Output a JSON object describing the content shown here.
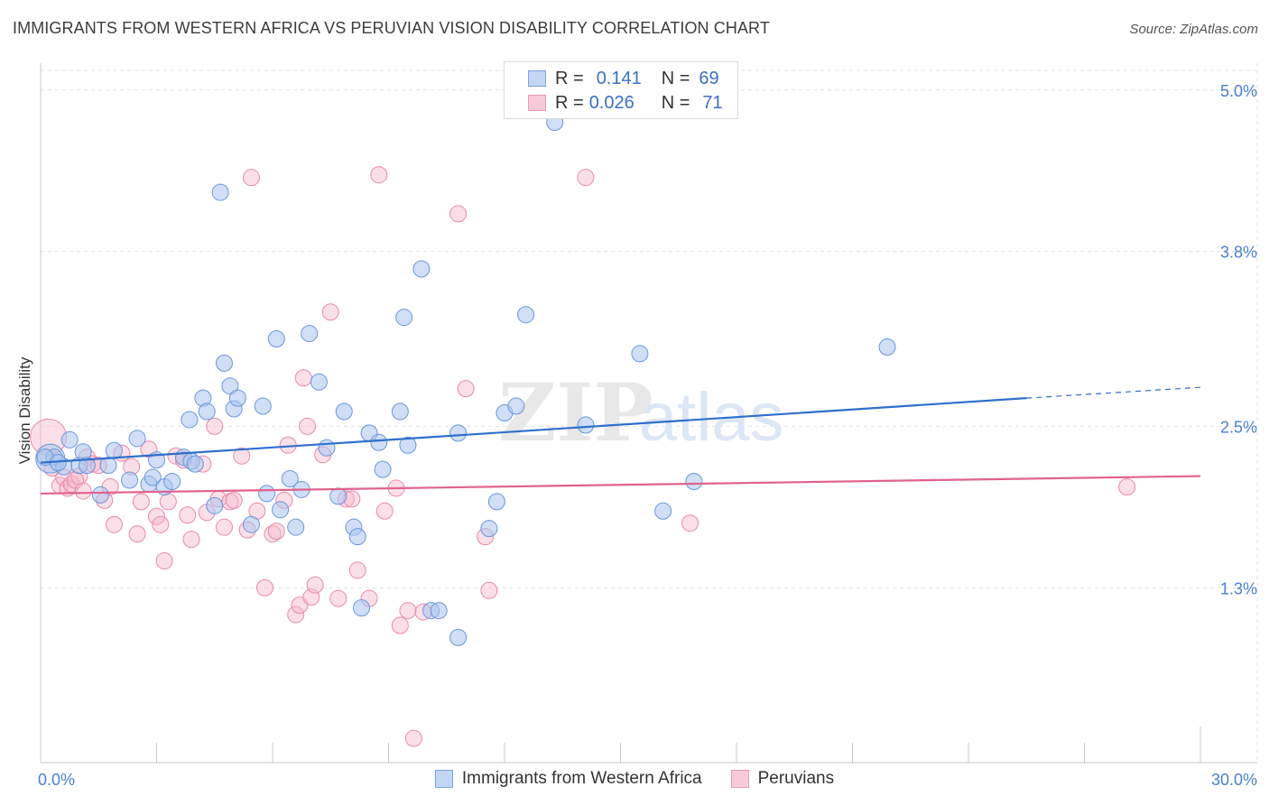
{
  "title": "IMMIGRANTS FROM WESTERN AFRICA VS PERUVIAN VISION DISABILITY CORRELATION CHART",
  "source": "Source: ZipAtlas.com",
  "watermark": {
    "zip": "ZIP",
    "atlas": "atlas"
  },
  "colors": {
    "blue_fill": "#a9c4ee",
    "blue_stroke": "#6a96da",
    "blue_line": "#2f6fcc",
    "pink_fill": "#f6b9cc",
    "pink_stroke": "#e88aa8",
    "pink_line": "#e0628c",
    "tick_text": "#4a7fd0",
    "grid": "#e3e3e3"
  },
  "legend": {
    "rows": [
      {
        "r_label": "R =",
        "r_value": "0.141",
        "n_label": "N =",
        "n_value": "69"
      },
      {
        "r_label": "R =",
        "r_value": "0.026",
        "n_label": "N =",
        "n_value": "71"
      }
    ]
  },
  "bottom_legend": [
    "Immigrants from Western Africa",
    "Peruvians"
  ],
  "chart_data": {
    "type": "scatter",
    "xlabel": "",
    "ylabel": "Vision Disability",
    "xlim": [
      0,
      30
    ],
    "ylim": [
      0,
      5.2
    ],
    "x_tick_labels": [
      {
        "value": 0,
        "label": "0.0%"
      },
      {
        "value": 30,
        "label": "30.0%"
      }
    ],
    "y_tick_labels": [
      {
        "value": 1.3,
        "label": "1.3%"
      },
      {
        "value": 2.5,
        "label": "2.5%"
      },
      {
        "value": 3.8,
        "label": "3.8%"
      },
      {
        "value": 5.0,
        "label": "5.0%"
      }
    ],
    "x_minor_ticks": [
      3,
      6,
      9,
      12,
      15,
      18,
      21,
      24,
      27
    ],
    "grid": true,
    "series": [
      {
        "name": "Immigrants from Western Africa",
        "r": 0.141,
        "n": 69,
        "trend": {
          "x0": 0,
          "y0": 2.23,
          "x1": 25.5,
          "y1": 2.71,
          "dashed_to_x": 30,
          "dashed_to_y": 2.79
        },
        "points": [
          [
            0.25,
            2.26
          ],
          [
            0.35,
            2.27
          ],
          [
            0.6,
            2.2
          ],
          [
            0.75,
            2.4
          ],
          [
            1.0,
            2.21
          ],
          [
            1.1,
            2.31
          ],
          [
            1.2,
            2.21
          ],
          [
            1.55,
            1.99
          ],
          [
            1.75,
            2.21
          ],
          [
            1.9,
            2.32
          ],
          [
            2.3,
            2.1
          ],
          [
            2.5,
            2.41
          ],
          [
            2.8,
            2.07
          ],
          [
            2.9,
            2.12
          ],
          [
            3.0,
            2.25
          ],
          [
            3.2,
            2.05
          ],
          [
            3.4,
            2.09
          ],
          [
            3.7,
            2.27
          ],
          [
            3.85,
            2.55
          ],
          [
            3.9,
            2.24
          ],
          [
            4.0,
            2.22
          ],
          [
            4.2,
            2.71
          ],
          [
            4.3,
            2.61
          ],
          [
            4.5,
            1.91
          ],
          [
            4.65,
            4.24
          ],
          [
            4.75,
            2.97
          ],
          [
            4.9,
            2.8
          ],
          [
            5.0,
            2.63
          ],
          [
            5.1,
            2.71
          ],
          [
            5.45,
            1.77
          ],
          [
            5.75,
            2.65
          ],
          [
            5.85,
            2.0
          ],
          [
            6.1,
            3.15
          ],
          [
            6.2,
            1.88
          ],
          [
            6.45,
            2.11
          ],
          [
            6.6,
            1.75
          ],
          [
            6.75,
            2.03
          ],
          [
            6.95,
            3.19
          ],
          [
            7.2,
            2.83
          ],
          [
            7.4,
            2.34
          ],
          [
            7.7,
            1.98
          ],
          [
            7.85,
            2.61
          ],
          [
            8.1,
            1.75
          ],
          [
            8.2,
            1.68
          ],
          [
            8.3,
            1.15
          ],
          [
            8.5,
            2.45
          ],
          [
            8.75,
            2.38
          ],
          [
            8.85,
            2.18
          ],
          [
            9.4,
            3.31
          ],
          [
            9.3,
            2.61
          ],
          [
            9.5,
            2.36
          ],
          [
            9.85,
            3.67
          ],
          [
            10.1,
            1.13
          ],
          [
            10.3,
            1.13
          ],
          [
            10.8,
            2.45
          ],
          [
            10.8,
            0.93
          ],
          [
            11.6,
            1.74
          ],
          [
            11.8,
            1.94
          ],
          [
            12.0,
            2.6
          ],
          [
            12.3,
            2.65
          ],
          [
            12.55,
            3.33
          ],
          [
            14.1,
            2.51
          ],
          [
            15.5,
            3.04
          ],
          [
            16.1,
            1.87
          ],
          [
            16.9,
            2.09
          ],
          [
            21.9,
            3.09
          ],
          [
            0.12,
            2.27
          ],
          [
            0.45,
            2.23
          ],
          [
            13.3,
            4.76
          ]
        ]
      },
      {
        "name": "Peruvians",
        "r": 0.026,
        "n": 71,
        "trend": {
          "x0": 0,
          "y0": 2.0,
          "x1": 30,
          "y1": 2.13
        },
        "points": [
          [
            0.2,
            2.42
          ],
          [
            0.3,
            2.19
          ],
          [
            0.5,
            2.06
          ],
          [
            0.6,
            2.12
          ],
          [
            0.7,
            2.04
          ],
          [
            0.8,
            2.07
          ],
          [
            1.0,
            2.13
          ],
          [
            1.2,
            2.27
          ],
          [
            1.35,
            2.22
          ],
          [
            1.5,
            2.21
          ],
          [
            1.65,
            1.95
          ],
          [
            1.8,
            2.05
          ],
          [
            1.9,
            1.77
          ],
          [
            2.1,
            2.3
          ],
          [
            2.35,
            2.2
          ],
          [
            2.5,
            1.7
          ],
          [
            2.6,
            1.94
          ],
          [
            2.8,
            2.33
          ],
          [
            3.0,
            1.83
          ],
          [
            3.1,
            1.77
          ],
          [
            3.2,
            1.5
          ],
          [
            3.3,
            1.94
          ],
          [
            3.5,
            2.28
          ],
          [
            3.7,
            2.25
          ],
          [
            3.8,
            1.84
          ],
          [
            3.9,
            1.66
          ],
          [
            4.2,
            2.22
          ],
          [
            4.3,
            1.86
          ],
          [
            4.5,
            2.5
          ],
          [
            4.6,
            1.96
          ],
          [
            4.75,
            1.75
          ],
          [
            4.9,
            1.94
          ],
          [
            5.0,
            1.95
          ],
          [
            5.2,
            2.28
          ],
          [
            5.35,
            1.73
          ],
          [
            5.45,
            4.35
          ],
          [
            5.6,
            1.87
          ],
          [
            5.8,
            1.3
          ],
          [
            6.0,
            1.7
          ],
          [
            6.1,
            1.72
          ],
          [
            6.3,
            1.95
          ],
          [
            6.4,
            2.36
          ],
          [
            6.6,
            1.1
          ],
          [
            6.7,
            1.17
          ],
          [
            6.8,
            2.86
          ],
          [
            6.9,
            2.5
          ],
          [
            7.0,
            1.23
          ],
          [
            7.1,
            1.32
          ],
          [
            7.3,
            2.29
          ],
          [
            7.5,
            3.35
          ],
          [
            7.7,
            1.22
          ],
          [
            7.9,
            1.96
          ],
          [
            8.05,
            1.96
          ],
          [
            8.2,
            1.43
          ],
          [
            8.5,
            1.22
          ],
          [
            8.75,
            4.37
          ],
          [
            8.9,
            1.87
          ],
          [
            9.2,
            2.04
          ],
          [
            9.3,
            1.02
          ],
          [
            9.5,
            1.13
          ],
          [
            9.65,
            0.18
          ],
          [
            9.9,
            1.12
          ],
          [
            10.8,
            4.08
          ],
          [
            11.0,
            2.78
          ],
          [
            11.5,
            1.68
          ],
          [
            11.6,
            1.28
          ],
          [
            14.1,
            4.35
          ],
          [
            16.8,
            1.78
          ],
          [
            28.1,
            2.05
          ],
          [
            0.9,
            2.1
          ],
          [
            1.1,
            2.02
          ]
        ]
      }
    ]
  }
}
